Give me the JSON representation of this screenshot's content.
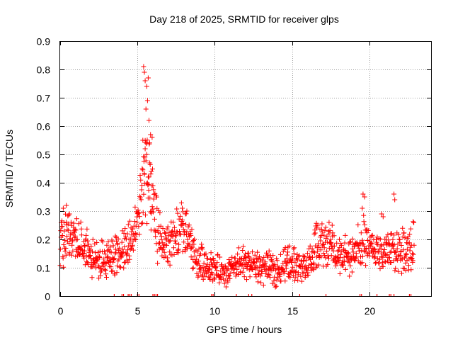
{
  "chart_data": {
    "type": "scatter",
    "title": "Day 218 of 2025, SRMTID for receiver glps",
    "xlabel": "GPS time / hours",
    "ylabel": "SRMTID / TECUs",
    "xlim": [
      0,
      24
    ],
    "ylim": [
      0,
      0.9
    ],
    "xticks": [
      0,
      5,
      10,
      15,
      20
    ],
    "xtick_labels": [
      "0",
      "5",
      "10",
      "15",
      "20"
    ],
    "yticks": [
      0,
      0.1,
      0.2,
      0.3,
      0.4,
      0.5,
      0.6,
      0.7,
      0.8,
      0.9
    ],
    "ytick_labels": [
      "0",
      "0.1",
      "0.2",
      "0.3",
      "0.4",
      "0.5",
      "0.6",
      "0.7",
      "0.8",
      "0.9"
    ],
    "grid": true,
    "marker": "plus",
    "color": "#ff0000",
    "series": [
      {
        "name": "SRMTID",
        "anchors": [
          [
            0.0,
            0.2
          ],
          [
            0.3,
            0.19
          ],
          [
            0.5,
            0.24
          ],
          [
            0.8,
            0.21
          ],
          [
            1.0,
            0.18
          ],
          [
            1.3,
            0.17
          ],
          [
            1.6,
            0.19
          ],
          [
            2.0,
            0.13
          ],
          [
            2.5,
            0.12
          ],
          [
            3.0,
            0.14
          ],
          [
            3.5,
            0.15
          ],
          [
            4.0,
            0.15
          ],
          [
            4.5,
            0.18
          ],
          [
            4.8,
            0.22
          ],
          [
            5.1,
            0.29
          ],
          [
            5.3,
            0.38
          ],
          [
            5.5,
            0.45
          ],
          [
            5.7,
            0.4
          ],
          [
            5.9,
            0.33
          ],
          [
            6.1,
            0.27
          ],
          [
            6.4,
            0.21
          ],
          [
            6.8,
            0.18
          ],
          [
            7.2,
            0.18
          ],
          [
            7.6,
            0.22
          ],
          [
            8.0,
            0.23
          ],
          [
            8.4,
            0.18
          ],
          [
            8.8,
            0.12
          ],
          [
            9.2,
            0.12
          ],
          [
            9.6,
            0.11
          ],
          [
            10.0,
            0.1
          ],
          [
            10.5,
            0.08
          ],
          [
            11.0,
            0.09
          ],
          [
            11.5,
            0.11
          ],
          [
            12.0,
            0.12
          ],
          [
            12.5,
            0.11
          ],
          [
            13.0,
            0.1
          ],
          [
            13.5,
            0.1
          ],
          [
            14.0,
            0.09
          ],
          [
            14.5,
            0.11
          ],
          [
            15.0,
            0.12
          ],
          [
            15.5,
            0.11
          ],
          [
            16.0,
            0.11
          ],
          [
            16.5,
            0.17
          ],
          [
            17.0,
            0.18
          ],
          [
            17.5,
            0.18
          ],
          [
            18.0,
            0.14
          ],
          [
            18.5,
            0.14
          ],
          [
            19.0,
            0.15
          ],
          [
            19.3,
            0.17
          ],
          [
            19.6,
            0.19
          ],
          [
            20.0,
            0.17
          ],
          [
            20.5,
            0.16
          ],
          [
            21.0,
            0.15
          ],
          [
            21.5,
            0.17
          ],
          [
            22.0,
            0.16
          ],
          [
            22.5,
            0.17
          ],
          [
            22.9,
            0.18
          ]
        ],
        "spikes": [
          [
            5.4,
            0.81
          ],
          [
            5.45,
            0.79
          ],
          [
            5.5,
            0.76
          ],
          [
            5.6,
            0.74
          ],
          [
            5.7,
            0.77
          ],
          [
            5.65,
            0.69
          ],
          [
            5.55,
            0.66
          ],
          [
            5.75,
            0.62
          ],
          [
            5.85,
            0.57
          ],
          [
            5.95,
            0.56
          ],
          [
            5.35,
            0.55
          ],
          [
            5.5,
            0.52
          ],
          [
            5.6,
            0.5
          ],
          [
            5.8,
            0.47
          ],
          [
            5.9,
            0.44
          ],
          [
            5.45,
            0.43
          ],
          [
            5.7,
            0.42
          ],
          [
            6.0,
            0.39
          ],
          [
            7.9,
            0.31
          ],
          [
            8.1,
            0.29
          ],
          [
            8.2,
            0.3
          ],
          [
            19.6,
            0.36
          ],
          [
            19.7,
            0.35
          ],
          [
            19.55,
            0.31
          ],
          [
            21.6,
            0.36
          ],
          [
            21.65,
            0.34
          ],
          [
            20.8,
            0.29
          ],
          [
            20.9,
            0.28
          ],
          [
            0.2,
            0.31
          ],
          [
            0.4,
            0.32
          ],
          [
            0.6,
            0.29
          ],
          [
            16.6,
            0.24
          ],
          [
            17.4,
            0.26
          ],
          [
            17.6,
            0.25
          ]
        ],
        "point_count": 1200
      }
    ],
    "axis_markers_x": [
      3.5,
      4.0,
      4.1,
      4.4,
      4.5,
      4.6,
      5.0,
      5.1,
      6.0,
      6.1,
      6.2,
      6.3,
      9.8,
      9.9,
      11.4,
      12.2,
      12.4,
      15.5,
      17.2,
      19.4,
      19.5,
      20.5,
      21.3,
      21.4,
      21.6,
      22.6,
      22.7
    ]
  }
}
